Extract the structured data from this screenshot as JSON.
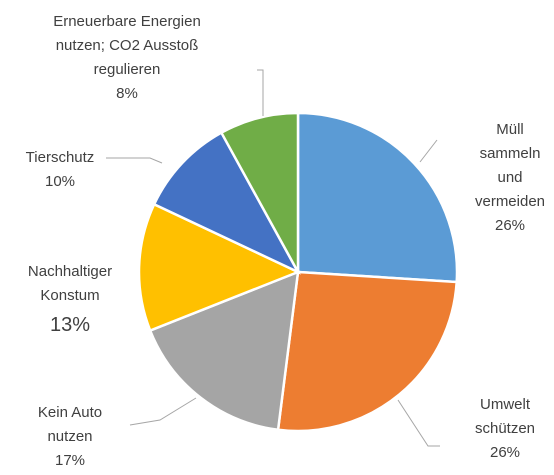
{
  "chart_data": {
    "type": "pie",
    "categories": [
      "Müll\nsammeln\nund\nvermeiden",
      "Umwelt\nschützen",
      "Kein Auto\nnutzen",
      "Nachhaltiger\nKonstum",
      "Tierschutz",
      "Erneuerbare Energien\nnutzen;  CO2 Ausstoß\nregulieren"
    ],
    "values": [
      26,
      26,
      17,
      13,
      10,
      8
    ],
    "value_labels": [
      "26%",
      "26%",
      "17%",
      "13%",
      "10%",
      "8%"
    ],
    "colors": [
      "#5b9bd5",
      "#ed7d31",
      "#a5a5a5",
      "#ffc000",
      "#4472c4",
      "#70ad47"
    ]
  }
}
